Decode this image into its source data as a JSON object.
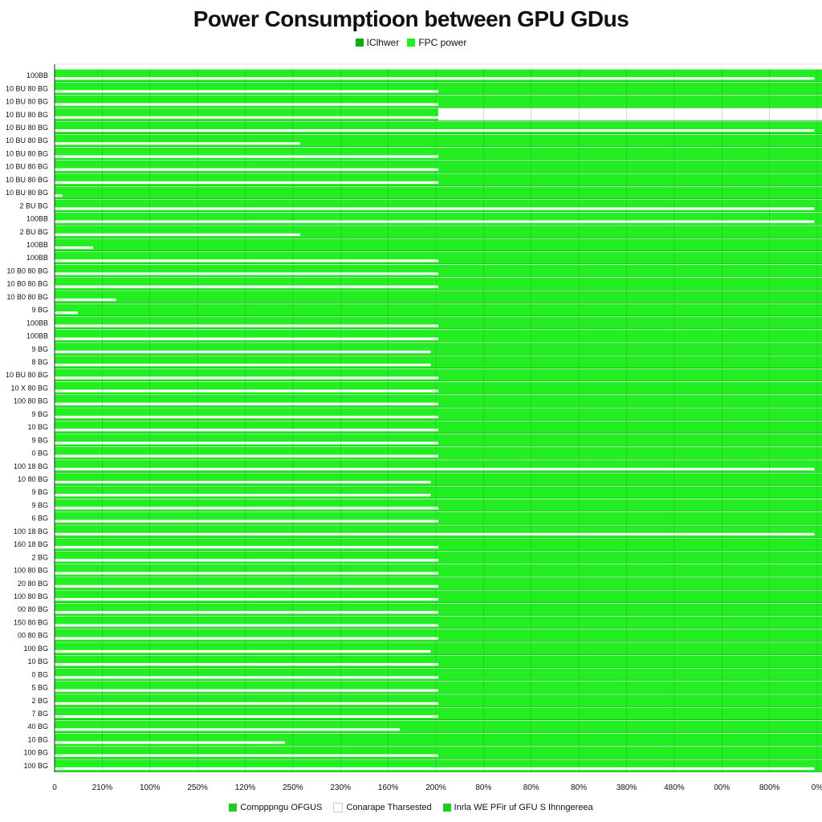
{
  "colors": {
    "primary": "#22ee22",
    "dark": "#11aa11",
    "grid": "#0f8f0f"
  },
  "chart_data": {
    "type": "bar",
    "orientation": "horizontal",
    "title": "Power Consumptioon between GPU GDus",
    "xlabel": "",
    "ylabel": "",
    "legend_top": [
      "IClhwer",
      "FPC power"
    ],
    "legend_bottom": [
      "Compppngu OFGUS",
      "Conarape Tharsested",
      "Inrla WE PFir uf GFU S Ihnngereea"
    ],
    "x_tick_labels": [
      "0",
      "210%",
      "100%",
      "250%",
      "120%",
      "250%",
      "230%",
      "160%",
      "200%",
      "80%",
      "80%",
      "80%",
      "380%",
      "480%",
      "00%",
      "800%",
      "0%"
    ],
    "x_domain": [
      0,
      1
    ],
    "categories": [
      "100BB",
      "10 BU 80 BG",
      "10 BU 80 BG",
      "10 BU 80 BG",
      "10 BU 80 BG",
      "10 BU 80 BG",
      "10 BU 80 BG",
      "10 BU 80 BG",
      "10 BU 80 BG",
      "10 BU 80 BG",
      "2 BU BG",
      "100BB",
      "2 BU BG",
      "100BB",
      "100BB",
      "10 B0 80 BG",
      "10 B0 80 BG",
      "10 B0 80 BG",
      "9 BG",
      "100BB",
      "100BB",
      "9 BG",
      "8 BG",
      "10 BU 80 BG",
      "10 X 80 BG",
      "100 80 BG",
      "9 BG",
      "10 BG",
      "9 BG",
      "0 BG",
      "100 18 BG",
      "10 80 BG",
      "9 BG",
      "9 BG",
      "6 BG",
      "100 18 BG",
      "160 18 BG",
      "2 BG",
      "100 80 BG",
      "20 80 BG",
      "100 80 BG",
      "00 80 BG",
      "150 80 BG",
      "00 80 BG",
      "100 BG",
      "10 BG",
      "0 BG",
      "5 BG",
      "2 BG",
      "7 BG",
      "40 BG",
      "10 BG",
      "100 BG",
      "100 BG"
    ],
    "series": [
      {
        "values": [
          1,
          1,
          1,
          0.5,
          1,
          1,
          1,
          1,
          1,
          1,
          1,
          1,
          1,
          1,
          1,
          1,
          1,
          1,
          1,
          1,
          1,
          1,
          1,
          1,
          1,
          1,
          1,
          1,
          1,
          1,
          1,
          1,
          1,
          1,
          1,
          1,
          1,
          1,
          1,
          1,
          1,
          1,
          1,
          1,
          1,
          1,
          1,
          1,
          1,
          1,
          1,
          1,
          1,
          1
        ]
      },
      {
        "values": [
          0.99,
          0.5,
          0.5,
          0.5,
          0.99,
          0.32,
          0.5,
          0.5,
          0.5,
          0.01,
          0.99,
          0.99,
          0.32,
          0.05,
          0.5,
          0.5,
          0.5,
          0.08,
          0.03,
          0.5,
          0.5,
          0.49,
          0.49,
          0.5,
          0.5,
          0.5,
          0.5,
          0.5,
          0.5,
          0.5,
          0.99,
          0.49,
          0.49,
          0.5,
          0.5,
          0.99,
          0.5,
          0.5,
          0.5,
          0.5,
          0.5,
          0.5,
          0.5,
          0.5,
          0.49,
          0.5,
          0.5,
          0.5,
          0.5,
          0.5,
          0.45,
          0.3,
          0.5,
          0.99
        ]
      }
    ]
  }
}
